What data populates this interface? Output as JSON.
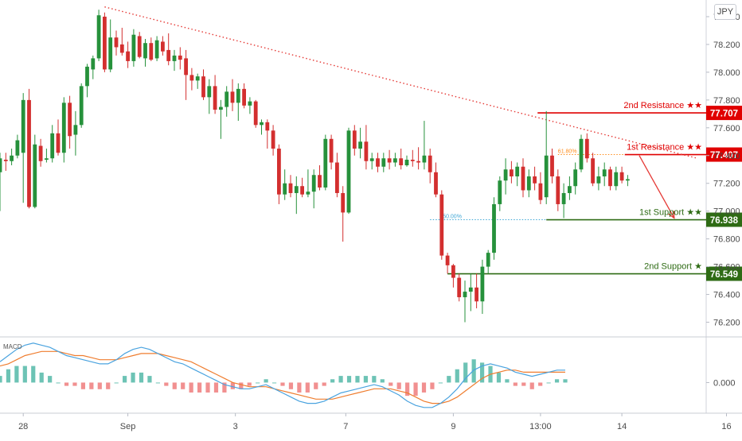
{
  "currency": "JPY",
  "macd_label": "MACD",
  "colors": {
    "bull": "#26913b",
    "bear": "#d32f2f",
    "resistance": "#e00000",
    "support": "#2e6b14",
    "trend": "#e53935",
    "fib": "#ff8c1a",
    "fib50": "#3fa7d6",
    "macd_line": "#4aa3df",
    "signal_line": "#ef7d2f",
    "hist_pos": "#54b8a8",
    "hist_neg": "#ef7d7d"
  },
  "chart_data": {
    "type": "candlestick",
    "y_axis": {
      "range": [
        76.1,
        78.52
      ],
      "ticks": [
        "78.400",
        "78.200",
        "78.000",
        "77.800",
        "77.600",
        "77.400",
        "77.200",
        "77.000",
        "76.800",
        "76.600",
        "76.400",
        "76.200"
      ]
    },
    "x_axis": {
      "range": [
        0,
        113
      ],
      "ticks": [
        {
          "x": 4.0,
          "label": "28"
        },
        {
          "x": 22.0,
          "label": "Sep"
        },
        {
          "x": 40.5,
          "label": "3"
        },
        {
          "x": 59.5,
          "label": "7"
        },
        {
          "x": 78.0,
          "label": "9"
        },
        {
          "x": 93.0,
          "label": "13:00"
        },
        {
          "x": 107.0,
          "label": "14"
        },
        {
          "x": 125.0,
          "label": "16"
        }
      ]
    },
    "levels": [
      {
        "name": "2nd Resistance",
        "stars": "★★",
        "value": 77.707,
        "label": "77.707",
        "kind": "resistance",
        "x_start": 92.5
      },
      {
        "name": "1st Resistance",
        "stars": "★★",
        "value": 77.407,
        "label": "77.407",
        "kind": "resistance",
        "x_start": 107.5
      },
      {
        "name": "1st Support",
        "stars": "★★",
        "value": 76.938,
        "label": "76.938",
        "kind": "support",
        "x_start": 94.0
      },
      {
        "name": "2nd Support",
        "stars": "★",
        "value": 76.549,
        "label": "76.549",
        "kind": "support",
        "x_start": 77.0
      }
    ],
    "fib_levels": [
      {
        "label": "61.80%",
        "value": 77.407,
        "x_start": 96.0,
        "x_end": 107.5,
        "kind": "fib"
      },
      {
        "label": "50.00%",
        "value": 76.938,
        "x_start": 74.0,
        "x_end": 94.0,
        "kind": "fib50"
      }
    ],
    "trendline": {
      "x1": 18.0,
      "y1": 78.47,
      "x2": 120.0,
      "y2": 77.38
    },
    "arrow": {
      "x1": 110.0,
      "y1": 77.4,
      "x2": 116.0,
      "y2": 76.95
    },
    "candles": [
      [
        77.28,
        77.42,
        77.0,
        77.38
      ],
      [
        77.37,
        77.42,
        77.29,
        77.36
      ],
      [
        77.36,
        77.45,
        77.33,
        77.4
      ],
      [
        77.4,
        77.55,
        77.38,
        77.51
      ],
      [
        77.42,
        77.85,
        77.06,
        77.8
      ],
      [
        77.8,
        77.88,
        77.02,
        77.03
      ],
      [
        77.03,
        77.55,
        77.02,
        77.48
      ],
      [
        77.47,
        77.52,
        77.32,
        77.36
      ],
      [
        77.37,
        77.45,
        77.35,
        77.38
      ],
      [
        77.38,
        77.62,
        77.35,
        77.56
      ],
      [
        77.56,
        77.66,
        77.4,
        77.42
      ],
      [
        77.42,
        77.82,
        77.35,
        77.78
      ],
      [
        77.78,
        77.83,
        77.45,
        77.54
      ],
      [
        77.55,
        77.72,
        77.4,
        77.62
      ],
      [
        77.62,
        77.92,
        77.6,
        77.9
      ],
      [
        77.9,
        78.06,
        77.82,
        78.04
      ],
      [
        78.02,
        78.12,
        77.95,
        78.1
      ],
      [
        78.1,
        78.45,
        78.08,
        78.41
      ],
      [
        78.4,
        78.43,
        78.0,
        78.02
      ],
      [
        78.02,
        78.38,
        78.0,
        78.25
      ],
      [
        78.25,
        78.3,
        78.12,
        78.18
      ],
      [
        78.2,
        78.32,
        78.12,
        78.14
      ],
      [
        78.15,
        78.22,
        78.03,
        78.08
      ],
      [
        78.08,
        78.31,
        78.04,
        78.27
      ],
      [
        78.26,
        78.29,
        78.1,
        78.11
      ],
      [
        78.1,
        78.24,
        78.04,
        78.21
      ],
      [
        78.21,
        78.25,
        78.08,
        78.09
      ],
      [
        78.1,
        78.26,
        78.08,
        78.23
      ],
      [
        78.22,
        78.26,
        78.12,
        78.15
      ],
      [
        78.16,
        78.28,
        78.05,
        78.08
      ],
      [
        78.08,
        78.16,
        78.01,
        78.12
      ],
      [
        78.12,
        78.18,
        78.02,
        78.09
      ],
      [
        78.1,
        78.16,
        77.8,
        77.98
      ],
      [
        77.98,
        78.03,
        77.87,
        77.94
      ],
      [
        77.94,
        77.99,
        77.88,
        77.97
      ],
      [
        77.97,
        78.02,
        77.8,
        77.82
      ],
      [
        77.82,
        77.95,
        77.7,
        77.9
      ],
      [
        77.9,
        77.98,
        77.7,
        77.73
      ],
      [
        77.73,
        77.8,
        77.52,
        77.75
      ],
      [
        77.75,
        77.9,
        77.68,
        77.86
      ],
      [
        77.86,
        77.95,
        77.72,
        77.78
      ],
      [
        77.78,
        77.92,
        77.65,
        77.88
      ],
      [
        77.88,
        77.92,
        77.74,
        77.76
      ],
      [
        77.76,
        77.82,
        77.7,
        77.79
      ],
      [
        77.79,
        77.8,
        77.6,
        77.62
      ],
      [
        77.62,
        77.66,
        77.55,
        77.64
      ],
      [
        77.64,
        77.66,
        77.45,
        77.58
      ],
      [
        77.58,
        77.62,
        77.4,
        77.45
      ],
      [
        77.45,
        77.48,
        77.05,
        77.12
      ],
      [
        77.12,
        77.3,
        77.08,
        77.2
      ],
      [
        77.2,
        77.26,
        77.1,
        77.13
      ],
      [
        77.13,
        77.25,
        76.98,
        77.18
      ],
      [
        77.18,
        77.24,
        77.1,
        77.12
      ],
      [
        77.12,
        77.3,
        77.1,
        77.14
      ],
      [
        77.14,
        77.3,
        77.02,
        77.26
      ],
      [
        77.26,
        77.33,
        77.15,
        77.17
      ],
      [
        77.17,
        77.55,
        77.15,
        77.52
      ],
      [
        77.52,
        77.55,
        77.3,
        77.35
      ],
      [
        77.35,
        77.42,
        77.1,
        77.13
      ],
      [
        77.13,
        77.18,
        76.78,
        76.99
      ],
      [
        76.99,
        77.6,
        76.98,
        77.58
      ],
      [
        77.58,
        77.62,
        77.4,
        77.45
      ],
      [
        77.45,
        77.6,
        77.38,
        77.5
      ],
      [
        77.5,
        77.62,
        77.3,
        77.36
      ],
      [
        77.36,
        77.42,
        77.3,
        77.38
      ],
      [
        77.38,
        77.42,
        77.28,
        77.32
      ],
      [
        77.32,
        77.42,
        77.28,
        77.38
      ],
      [
        77.38,
        77.44,
        77.3,
        77.35
      ],
      [
        77.35,
        77.42,
        77.32,
        77.38
      ],
      [
        77.38,
        77.45,
        77.3,
        77.33
      ],
      [
        77.33,
        77.4,
        77.32,
        77.37
      ],
      [
        77.37,
        77.44,
        77.32,
        77.36
      ],
      [
        77.36,
        77.46,
        77.3,
        77.35
      ],
      [
        77.35,
        77.65,
        77.3,
        77.4
      ],
      [
        77.4,
        77.45,
        77.2,
        77.28
      ],
      [
        77.28,
        77.35,
        77.1,
        77.12
      ],
      [
        77.12,
        77.15,
        76.65,
        76.68
      ],
      [
        76.68,
        76.7,
        76.55,
        76.61
      ],
      [
        76.61,
        76.62,
        76.45,
        76.52
      ],
      [
        76.52,
        76.55,
        76.35,
        76.38
      ],
      [
        76.38,
        76.5,
        76.2,
        76.42
      ],
      [
        76.42,
        76.55,
        76.28,
        76.45
      ],
      [
        76.45,
        76.55,
        76.3,
        76.35
      ],
      [
        76.35,
        76.65,
        76.26,
        76.6
      ],
      [
        76.6,
        76.72,
        76.55,
        76.7
      ],
      [
        76.7,
        77.1,
        76.65,
        77.05
      ],
      [
        77.05,
        77.25,
        77.0,
        77.22
      ],
      [
        77.22,
        77.38,
        77.12,
        77.3
      ],
      [
        77.3,
        77.36,
        77.2,
        77.25
      ],
      [
        77.25,
        77.35,
        77.18,
        77.32
      ],
      [
        77.32,
        77.38,
        77.1,
        77.15
      ],
      [
        77.15,
        77.3,
        77.1,
        77.25
      ],
      [
        77.25,
        77.32,
        77.15,
        77.2
      ],
      [
        77.2,
        77.28,
        77.05,
        77.08
      ],
      [
        77.1,
        77.72,
        77.05,
        77.4
      ],
      [
        77.4,
        77.45,
        77.2,
        77.25
      ],
      [
        77.25,
        77.3,
        77.0,
        77.05
      ],
      [
        77.05,
        77.2,
        76.95,
        77.13
      ],
      [
        77.13,
        77.25,
        77.08,
        77.18
      ],
      [
        77.18,
        77.35,
        77.12,
        77.3
      ],
      [
        77.3,
        77.55,
        77.28,
        77.52
      ],
      [
        77.52,
        77.56,
        77.35,
        77.38
      ],
      [
        77.38,
        77.42,
        77.18,
        77.2
      ],
      [
        77.2,
        77.32,
        77.15,
        77.25
      ],
      [
        77.25,
        77.35,
        77.18,
        77.3
      ],
      [
        77.3,
        77.32,
        77.15,
        77.18
      ],
      [
        77.18,
        77.32,
        77.15,
        77.28
      ],
      [
        77.28,
        77.32,
        77.2,
        77.22
      ],
      [
        77.22,
        77.26,
        77.18,
        77.23
      ]
    ],
    "macd": {
      "range": [
        -0.14,
        0.22
      ],
      "tick": "0.000",
      "macd_line": [
        0.1,
        0.13,
        0.16,
        0.18,
        0.19,
        0.18,
        0.17,
        0.15,
        0.13,
        0.12,
        0.11,
        0.1,
        0.09,
        0.09,
        0.11,
        0.14,
        0.16,
        0.17,
        0.16,
        0.14,
        0.12,
        0.1,
        0.09,
        0.07,
        0.05,
        0.03,
        0.01,
        -0.01,
        -0.02,
        -0.03,
        -0.03,
        -0.02,
        -0.01,
        -0.03,
        -0.05,
        -0.07,
        -0.09,
        -0.1,
        -0.1,
        -0.09,
        -0.07,
        -0.05,
        -0.04,
        -0.03,
        -0.02,
        -0.01,
        -0.02,
        -0.04,
        -0.06,
        -0.09,
        -0.11,
        -0.12,
        -0.12,
        -0.1,
        -0.07,
        -0.03,
        0.02,
        0.06,
        0.08,
        0.09,
        0.08,
        0.07,
        0.05,
        0.04,
        0.03,
        0.04,
        0.05,
        0.06,
        0.06
      ],
      "signal_line": [
        0.08,
        0.09,
        0.11,
        0.13,
        0.14,
        0.15,
        0.15,
        0.15,
        0.14,
        0.13,
        0.13,
        0.12,
        0.11,
        0.11,
        0.11,
        0.12,
        0.13,
        0.14,
        0.14,
        0.14,
        0.13,
        0.12,
        0.11,
        0.1,
        0.08,
        0.06,
        0.04,
        0.02,
        0.0,
        -0.01,
        -0.02,
        -0.02,
        -0.02,
        -0.03,
        -0.04,
        -0.05,
        -0.06,
        -0.07,
        -0.08,
        -0.08,
        -0.08,
        -0.07,
        -0.06,
        -0.05,
        -0.04,
        -0.03,
        -0.03,
        -0.03,
        -0.04,
        -0.05,
        -0.07,
        -0.09,
        -0.1,
        -0.1,
        -0.09,
        -0.07,
        -0.04,
        -0.01,
        0.02,
        0.04,
        0.05,
        0.06,
        0.06,
        0.05,
        0.05,
        0.05,
        0.05,
        0.05,
        0.05
      ]
    }
  }
}
